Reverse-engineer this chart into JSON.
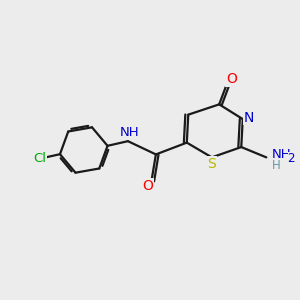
{
  "background_color": "#ececec",
  "bond_color": "#1a1a1a",
  "atom_colors": {
    "O": "#ff0000",
    "N": "#0000cc",
    "S": "#b8b800",
    "Cl": "#00aa00",
    "C": "#1a1a1a",
    "H": "#6699aa"
  },
  "figsize": [
    3.0,
    3.0
  ],
  "dpi": 100,
  "bond_lw": 1.6,
  "font_size": 9.5
}
